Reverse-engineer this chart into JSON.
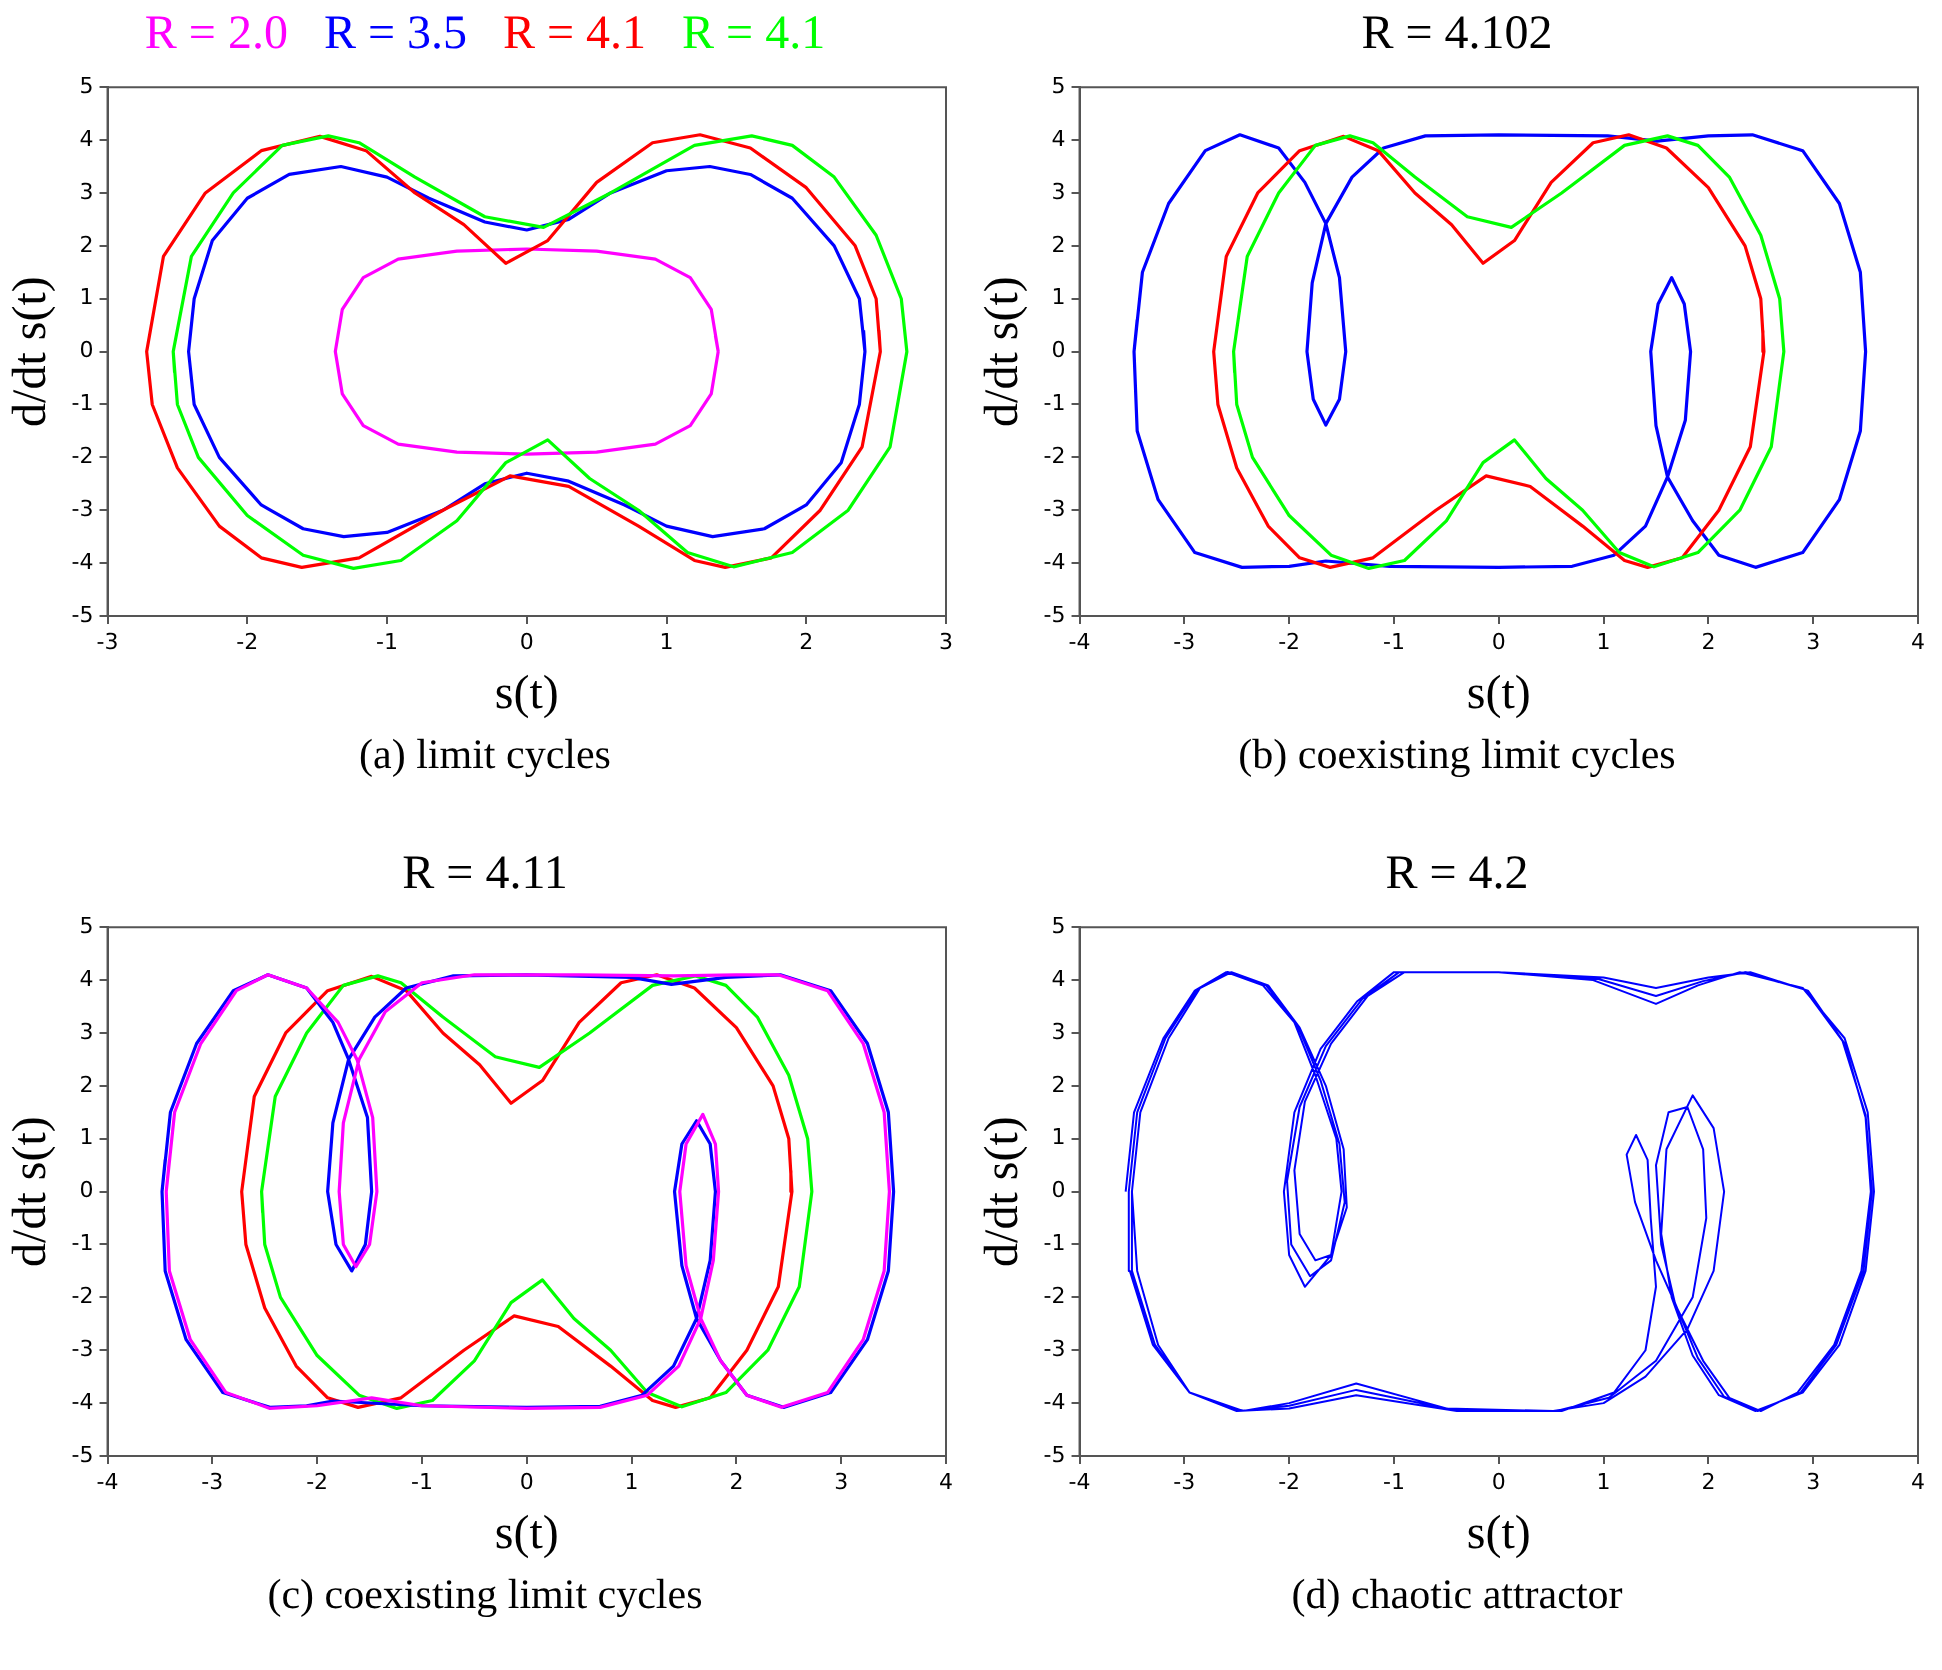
{
  "chart_data": [
    {
      "type": "line",
      "xlabel": "s(t)",
      "ylabel": "d/dt s(t)",
      "annotations": [
        "(a) limit cycles"
      ],
      "xlim": [
        -3,
        3
      ],
      "ylim": [
        -5,
        5
      ],
      "xticks": [
        -3,
        -2,
        -1,
        0,
        1,
        2,
        3
      ],
      "yticks": [
        -5,
        -4,
        -3,
        -2,
        -1,
        0,
        1,
        2,
        3,
        4,
        5
      ],
      "series": [
        {
          "name": "R = 2.0",
          "color": "#ff00ff",
          "x": [
            1.37,
            1.32,
            1.17,
            0.92,
            0.5,
            0,
            -0.5,
            -0.92,
            -1.17,
            -1.32,
            -1.37,
            -1.32,
            -1.17,
            -0.92,
            -0.5,
            0,
            0.5,
            0.92,
            1.17,
            1.32,
            1.37,
            1.35
          ],
          "values": [
            0,
            0.8,
            1.4,
            1.75,
            1.9,
            1.94,
            1.9,
            1.75,
            1.4,
            0.8,
            0,
            -0.8,
            -1.4,
            -1.75,
            -1.9,
            -1.94,
            -1.9,
            -1.75,
            -1.4,
            -0.8,
            0,
            0.3
          ]
        },
        {
          "name": "R = 3.5",
          "color": "#0000ff",
          "x": [
            2.42,
            2.38,
            2.2,
            1.9,
            1.6,
            1.31,
            1.0,
            0.6,
            0.3,
            0,
            -0.3,
            -0.7,
            -1.0,
            -1.33,
            -1.7,
            -2.0,
            -2.25,
            -2.38,
            -2.42,
            -2.38,
            -2.2,
            -1.9,
            -1.6,
            -1.31,
            -1.0,
            -0.6,
            -0.3,
            0,
            0.3,
            0.7,
            1.0,
            1.33,
            1.7,
            2.0,
            2.25,
            2.38,
            2.42,
            2.41
          ],
          "values": [
            0,
            1.0,
            2.0,
            2.9,
            3.35,
            3.5,
            3.42,
            3.0,
            2.5,
            2.3,
            2.45,
            2.9,
            3.3,
            3.5,
            3.35,
            2.9,
            2.1,
            1.0,
            0,
            -1.0,
            -2.0,
            -2.9,
            -3.35,
            -3.5,
            -3.42,
            -3.0,
            -2.5,
            -2.3,
            -2.45,
            -2.9,
            -3.3,
            -3.5,
            -3.35,
            -2.9,
            -2.1,
            -1.0,
            0,
            0.4
          ]
        },
        {
          "name": "R = 4.1",
          "color": "#ff0000",
          "x": [
            2.53,
            2.5,
            2.35,
            2.0,
            1.6,
            1.24,
            0.9,
            0.5,
            0.15,
            -0.15,
            -0.45,
            -0.8,
            -1.15,
            -1.48,
            -1.9,
            -2.3,
            -2.6,
            -2.72,
            -2.68,
            -2.5,
            -2.2,
            -1.9,
            -1.61,
            -1.2,
            -0.6,
            -0.12,
            0.3,
            0.8,
            1.2,
            1.42,
            1.75,
            2.1,
            2.4,
            2.53,
            2.52
          ],
          "values": [
            0,
            1.0,
            2.0,
            3.1,
            3.85,
            4.1,
            3.95,
            3.2,
            2.1,
            1.67,
            2.4,
            3.0,
            3.8,
            4.07,
            3.8,
            3.0,
            1.8,
            0,
            -1.0,
            -2.2,
            -3.3,
            -3.9,
            -4.08,
            -3.9,
            -3.0,
            -2.35,
            -2.55,
            -3.3,
            -3.95,
            -4.08,
            -3.9,
            -3.0,
            -1.8,
            0,
            0.4
          ]
        },
        {
          "name": "R = 4.1",
          "color": "#00ff00",
          "x": [
            -2.53,
            -2.5,
            -2.35,
            -2.0,
            -1.6,
            -1.24,
            -0.9,
            -0.5,
            -0.15,
            0.15,
            0.45,
            0.8,
            1.15,
            1.48,
            1.9,
            2.3,
            2.6,
            2.72,
            2.68,
            2.5,
            2.2,
            1.9,
            1.61,
            1.2,
            0.6,
            0.12,
            -0.3,
            -0.8,
            -1.2,
            -1.42,
            -1.75,
            -2.1,
            -2.4,
            -2.53,
            -2.52
          ],
          "values": [
            0,
            -1.0,
            -2.0,
            -3.1,
            -3.85,
            -4.1,
            -3.95,
            -3.2,
            -2.1,
            -1.67,
            -2.4,
            -3.0,
            -3.8,
            -4.07,
            -3.8,
            -3.0,
            -1.8,
            0,
            1.0,
            2.2,
            3.3,
            3.9,
            4.08,
            3.9,
            3.0,
            2.35,
            2.55,
            3.3,
            3.95,
            4.08,
            3.9,
            3.0,
            1.8,
            0,
            -0.4
          ]
        }
      ]
    },
    {
      "type": "line",
      "title": "R = 4.102",
      "xlabel": "s(t)",
      "ylabel": "d/dt s(t)",
      "annotations": [
        "(b) coexisting limit cycles"
      ],
      "xlim": [
        -4,
        4
      ],
      "ylim": [
        -5,
        5
      ],
      "xticks": [
        -4,
        -3,
        -2,
        -1,
        0,
        1,
        2,
        3,
        4
      ],
      "yticks": [
        -5,
        -4,
        -3,
        -2,
        -1,
        0,
        1,
        2,
        3,
        4,
        5
      ],
      "series": [
        {
          "color": "#0000ff",
          "x": [
            -3.48,
            -3.4,
            -3.15,
            -2.8,
            -2.47,
            -2.1,
            -1.85,
            -1.65,
            -1.52,
            -1.46,
            -1.52,
            -1.65,
            -1.77,
            -1.83,
            -1.78,
            -1.65,
            -1.4,
            -1.1,
            -0.7,
            0,
            1.04,
            1.51,
            2.0,
            2.42,
            2.9,
            3.25,
            3.45,
            3.5,
            3.45,
            3.25,
            2.9,
            2.45,
            2.1,
            1.85,
            1.61,
            1.5,
            1.45,
            1.52,
            1.65,
            1.77,
            1.83,
            1.78,
            1.61,
            1.4,
            1.1,
            0.7,
            0,
            -1.04,
            -1.65,
            -2.0,
            -2.45,
            -2.9,
            -3.25,
            -3.45,
            -3.48,
            -3.45
          ],
          "values": [
            0,
            1.5,
            2.8,
            3.8,
            4.1,
            3.85,
            3.2,
            2.42,
            1.4,
            0,
            -0.9,
            -1.39,
            -0.9,
            0,
            1.3,
            2.42,
            3.3,
            3.85,
            4.08,
            4.1,
            4.08,
            3.98,
            4.08,
            4.1,
            3.8,
            2.8,
            1.5,
            0,
            -1.5,
            -2.8,
            -3.8,
            -4.08,
            -3.85,
            -3.2,
            -2.37,
            -1.4,
            0,
            0.9,
            1.4,
            0.9,
            0,
            -1.3,
            -2.37,
            -3.3,
            -3.85,
            -4.06,
            -4.08,
            -4.06,
            -3.96,
            -4.06,
            -4.08,
            -3.8,
            -2.8,
            -1.5,
            0,
            0.6
          ]
        },
        {
          "color": "#ff0000",
          "x": [
            2.53,
            2.5,
            2.35,
            2.0,
            1.6,
            1.24,
            0.9,
            0.5,
            0.15,
            -0.15,
            -0.45,
            -0.8,
            -1.15,
            -1.48,
            -1.9,
            -2.3,
            -2.6,
            -2.72,
            -2.68,
            -2.5,
            -2.2,
            -1.9,
            -1.61,
            -1.2,
            -0.6,
            -0.12,
            0.3,
            0.8,
            1.2,
            1.42,
            1.75,
            2.1,
            2.4,
            2.53,
            2.52
          ],
          "values": [
            0,
            1.0,
            2.0,
            3.1,
            3.85,
            4.1,
            3.95,
            3.2,
            2.1,
            1.67,
            2.4,
            3.0,
            3.8,
            4.07,
            3.8,
            3.0,
            1.8,
            0,
            -1.0,
            -2.2,
            -3.3,
            -3.9,
            -4.08,
            -3.9,
            -3.0,
            -2.35,
            -2.55,
            -3.3,
            -3.95,
            -4.08,
            -3.9,
            -3.0,
            -1.8,
            0,
            0.4
          ]
        },
        {
          "color": "#00ff00",
          "x": [
            -2.53,
            -2.5,
            -2.35,
            -2.0,
            -1.6,
            -1.24,
            -0.9,
            -0.5,
            -0.15,
            0.15,
            0.45,
            0.8,
            1.15,
            1.48,
            1.9,
            2.3,
            2.6,
            2.72,
            2.68,
            2.5,
            2.2,
            1.9,
            1.61,
            1.2,
            0.6,
            0.12,
            -0.3,
            -0.8,
            -1.2,
            -1.42,
            -1.75,
            -2.1,
            -2.4,
            -2.53,
            -2.52
          ],
          "values": [
            0,
            -1.0,
            -2.0,
            -3.1,
            -3.85,
            -4.1,
            -3.95,
            -3.2,
            -2.1,
            -1.67,
            -2.4,
            -3.0,
            -3.8,
            -4.07,
            -3.8,
            -3.0,
            -1.8,
            0,
            1.0,
            2.2,
            3.3,
            3.9,
            4.08,
            3.9,
            3.0,
            2.35,
            2.55,
            3.3,
            3.95,
            4.08,
            3.9,
            3.0,
            1.8,
            0,
            -0.4
          ]
        }
      ]
    },
    {
      "type": "line",
      "title": "R = 4.11",
      "xlabel": "s(t)",
      "ylabel": "d/dt s(t)",
      "annotations": [
        "(c) coexisting limit cycles"
      ],
      "xlim": [
        -4,
        4
      ],
      "ylim": [
        -5,
        5
      ],
      "xticks": [
        -4,
        -3,
        -2,
        -1,
        0,
        1,
        2,
        3,
        4
      ],
      "yticks": [
        -5,
        -4,
        -3,
        -2,
        -1,
        0,
        1,
        2,
        3,
        4,
        5
      ],
      "series": [
        {
          "color": "#ff0000",
          "x": [
            2.53,
            2.5,
            2.35,
            2.0,
            1.6,
            1.24,
            0.9,
            0.5,
            0.15,
            -0.15,
            -0.45,
            -0.8,
            -1.15,
            -1.48,
            -1.9,
            -2.3,
            -2.6,
            -2.72,
            -2.68,
            -2.5,
            -2.2,
            -1.9,
            -1.61,
            -1.2,
            -0.6,
            -0.12,
            0.3,
            0.8,
            1.2,
            1.42,
            1.75,
            2.1,
            2.4,
            2.53,
            2.52
          ],
          "values": [
            0,
            1.0,
            2.0,
            3.1,
            3.85,
            4.1,
            3.95,
            3.2,
            2.1,
            1.67,
            2.4,
            3.0,
            3.8,
            4.07,
            3.8,
            3.0,
            1.8,
            0,
            -1.0,
            -2.2,
            -3.3,
            -3.9,
            -4.08,
            -3.9,
            -3.0,
            -2.35,
            -2.55,
            -3.3,
            -3.95,
            -4.08,
            -3.9,
            -3.0,
            -1.8,
            0,
            0.4
          ]
        },
        {
          "color": "#00ff00",
          "x": [
            -2.53,
            -2.5,
            -2.35,
            -2.0,
            -1.6,
            -1.24,
            -0.9,
            -0.5,
            -0.15,
            0.15,
            0.45,
            0.8,
            1.15,
            1.48,
            1.9,
            2.3,
            2.6,
            2.72,
            2.68,
            2.5,
            2.2,
            1.9,
            1.61,
            1.2,
            0.6,
            0.12,
            -0.3,
            -0.8,
            -1.2,
            -1.42,
            -1.75,
            -2.1,
            -2.4,
            -2.53,
            -2.52
          ],
          "values": [
            0,
            -1.0,
            -2.0,
            -3.1,
            -3.85,
            -4.1,
            -3.95,
            -3.2,
            -2.1,
            -1.67,
            -2.4,
            -3.0,
            -3.8,
            -4.07,
            -3.8,
            -3.0,
            -1.8,
            0,
            1.0,
            2.2,
            3.3,
            3.9,
            4.08,
            3.9,
            3.0,
            2.35,
            2.55,
            3.3,
            3.95,
            4.08,
            3.9,
            3.0,
            1.8,
            0,
            -0.4
          ]
        },
        {
          "color": "#0000ff",
          "x": [
            -3.48,
            -3.4,
            -3.15,
            -2.8,
            -2.47,
            -2.1,
            -1.85,
            -1.7,
            -1.52,
            -1.48,
            -1.54,
            -1.67,
            -1.82,
            -1.9,
            -1.85,
            -1.7,
            -1.45,
            -1.15,
            -0.7,
            0,
            1.0,
            1.38,
            1.9,
            2.42,
            2.9,
            3.25,
            3.45,
            3.5,
            3.45,
            3.25,
            2.9,
            2.45,
            2.1,
            1.85,
            1.62,
            1.48,
            1.41,
            1.48,
            1.62,
            1.75,
            1.8,
            1.75,
            1.62,
            1.4,
            1.1,
            0.7,
            0,
            -1.0,
            -1.85,
            -2.1,
            -2.45,
            -2.9,
            -3.25,
            -3.45,
            -3.48,
            -3.45
          ],
          "values": [
            0,
            1.5,
            2.8,
            3.8,
            4.1,
            3.85,
            3.2,
            2.5,
            1.4,
            0,
            -1.0,
            -1.5,
            -1.0,
            0,
            1.3,
            2.5,
            3.3,
            3.85,
            4.08,
            4.1,
            4.05,
            3.92,
            4.05,
            4.1,
            3.8,
            2.8,
            1.5,
            0,
            -1.5,
            -2.8,
            -3.8,
            -4.08,
            -3.85,
            -3.2,
            -2.4,
            -1.4,
            0,
            0.9,
            1.34,
            0.9,
            0,
            -1.3,
            -2.4,
            -3.3,
            -3.85,
            -4.06,
            -4.08,
            -4.05,
            -3.96,
            -4.05,
            -4.08,
            -3.8,
            -2.8,
            -1.5,
            0,
            0.6
          ]
        },
        {
          "color": "#ff00ff",
          "x": [
            -3.44,
            -3.36,
            -3.11,
            -2.77,
            -2.47,
            -2.1,
            -1.8,
            -1.62,
            -1.47,
            -1.43,
            -1.5,
            -1.63,
            -1.75,
            -1.79,
            -1.75,
            -1.6,
            -1.35,
            -1.0,
            -0.5,
            0.5,
            1.4,
            2.0,
            2.4,
            2.87,
            3.21,
            3.41,
            3.46,
            3.41,
            3.21,
            2.87,
            2.43,
            2.1,
            1.85,
            1.66,
            1.52,
            1.46,
            1.52,
            1.68,
            1.8,
            1.83,
            1.78,
            1.66,
            1.45,
            1.15,
            0.7,
            0,
            -1.0,
            -1.48,
            -2.0,
            -2.45,
            -2.87,
            -3.21,
            -3.41,
            -3.44,
            -3.41
          ],
          "values": [
            0,
            1.5,
            2.8,
            3.8,
            4.1,
            3.85,
            3.2,
            2.5,
            1.4,
            0,
            -1.0,
            -1.42,
            -1.0,
            0,
            1.3,
            2.5,
            3.4,
            3.95,
            4.1,
            4.1,
            4.08,
            4.1,
            4.1,
            3.8,
            2.8,
            1.5,
            0,
            -1.5,
            -2.8,
            -3.8,
            -4.08,
            -3.85,
            -3.2,
            -2.4,
            -1.4,
            0,
            0.9,
            1.46,
            0.9,
            0,
            -1.3,
            -2.4,
            -3.3,
            -3.85,
            -4.08,
            -4.1,
            -4.05,
            -3.9,
            -4.05,
            -4.1,
            -3.8,
            -2.8,
            -1.5,
            0,
            0.6
          ]
        }
      ]
    },
    {
      "type": "line",
      "title": "R = 4.2",
      "xlabel": "s(t)",
      "ylabel": "d/dt s(t)",
      "annotations": [
        "(d) chaotic attractor"
      ],
      "xlim": [
        -4,
        4
      ],
      "ylim": [
        -5,
        5
      ],
      "xticks": [
        -4,
        -3,
        -2,
        -1,
        0,
        1,
        2,
        3,
        4
      ],
      "yticks": [
        -5,
        -4,
        -3,
        -2,
        -1,
        0,
        1,
        2,
        3,
        4,
        5
      ],
      "series": [
        {
          "color": "#0000ff",
          "x": [
            -3.56,
            -3.48,
            -3.2,
            -2.9,
            -2.6,
            -2.25,
            -1.95,
            -1.75,
            -1.55,
            -1.5,
            -1.6,
            -1.85,
            -2.0,
            -2.05,
            -1.95,
            -1.7,
            -1.35,
            -1.0,
            0,
            0.9,
            1.5,
            1.9,
            2.3,
            2.9,
            3.3,
            3.52,
            3.58,
            3.5,
            3.25,
            2.9,
            2.45,
            2.1,
            1.85,
            1.65,
            1.55,
            1.6,
            1.85,
            2.05,
            2.15,
            2.05,
            1.8,
            1.4,
            1.0,
            0.52,
            -0.5,
            -1.36,
            -2.0,
            -2.44,
            -2.95,
            -3.3,
            -3.52,
            -3.53,
            -3.45,
            -3.18,
            -2.88,
            -2.58,
            -2.22,
            -1.92,
            -1.7,
            -1.52,
            -1.47,
            -1.6,
            -1.8,
            -1.98,
            -2.02,
            -1.9,
            -1.65,
            -1.3,
            -0.95,
            0,
            0.95,
            1.5,
            1.95,
            2.35,
            2.92,
            3.28,
            3.5,
            3.56,
            3.48,
            3.22,
            2.88,
            2.47,
            2.15,
            1.9,
            1.68,
            1.55,
            1.5,
            1.62,
            1.8,
            1.95,
            1.98,
            1.85,
            1.5,
            1.05,
            0.55,
            -0.45,
            -1.36,
            -2.0,
            -2.47,
            -2.95,
            -3.28,
            -3.5,
            -3.5,
            -3.42,
            -3.15,
            -2.85,
            -2.55,
            -2.2,
            -1.9,
            -1.65,
            -1.48,
            -1.45,
            -1.6,
            -1.75,
            -1.9,
            -1.95,
            -1.85,
            -1.6,
            -1.25,
            -0.9,
            0,
            1.0,
            1.5,
            2.0,
            2.4,
            2.95,
            3.3,
            3.5,
            3.55,
            3.46,
            3.2,
            2.85,
            2.5,
            2.2,
            1.95,
            1.7,
            1.5,
            1.3,
            1.22,
            1.31,
            1.42,
            1.45,
            1.5,
            1.4,
            1.1,
            0.6,
            -0.4,
            -1.36,
            -2.0,
            -2.5,
            -2.95,
            -3.25,
            -3.45,
            -3.5
          ],
          "values": [
            0,
            1.5,
            2.9,
            3.8,
            4.15,
            3.9,
            3.2,
            2.2,
            1.0,
            0,
            -1.2,
            -1.8,
            -1.2,
            0,
            1.5,
            2.7,
            3.6,
            4.15,
            4.15,
            4.0,
            3.55,
            3.9,
            4.15,
            3.85,
            2.9,
            1.5,
            0,
            -1.5,
            -2.9,
            -3.8,
            -4.15,
            -3.85,
            -3.1,
            -2.0,
            -0.8,
            0.8,
            1.82,
            1.2,
            0,
            -1.5,
            -2.6,
            -3.5,
            -4.0,
            -4.15,
            -4.1,
            -3.63,
            -4.0,
            -4.15,
            -3.8,
            -2.9,
            -1.5,
            0,
            1.5,
            2.9,
            3.82,
            4.15,
            3.9,
            3.15,
            2.1,
            0.9,
            -0.2,
            -1.3,
            -1.6,
            -1.0,
            0.2,
            1.6,
            2.75,
            3.65,
            4.15,
            4.15,
            4.02,
            3.7,
            3.98,
            4.15,
            3.82,
            2.85,
            1.45,
            0,
            -1.5,
            -2.9,
            -3.8,
            -4.15,
            -3.88,
            -3.15,
            -2.1,
            -1.0,
            0.5,
            1.5,
            1.6,
            0.8,
            -0.5,
            -2.0,
            -3.2,
            -3.9,
            -4.15,
            -4.12,
            -3.75,
            -4.05,
            -4.15,
            -3.8,
            -2.9,
            -1.5,
            0,
            1.5,
            2.9,
            3.85,
            4.15,
            3.9,
            3.1,
            2.0,
            0.8,
            -0.3,
            -1.2,
            -1.3,
            -0.8,
            0.4,
            1.7,
            2.8,
            3.7,
            4.15,
            4.15,
            4.05,
            3.85,
            4.05,
            4.15,
            3.8,
            2.8,
            1.4,
            0,
            -1.5,
            -2.9,
            -3.8,
            -4.15,
            -3.9,
            -3.2,
            -2.2,
            -1.3,
            -0.2,
            0.7,
            1.07,
            0.6,
            -0.5,
            -1.8,
            -3.0,
            -3.8,
            -4.15,
            -4.15,
            -3.85,
            -4.1,
            -4.15,
            -3.8,
            -2.9,
            -1.5,
            0
          ]
        }
      ]
    }
  ]
}
